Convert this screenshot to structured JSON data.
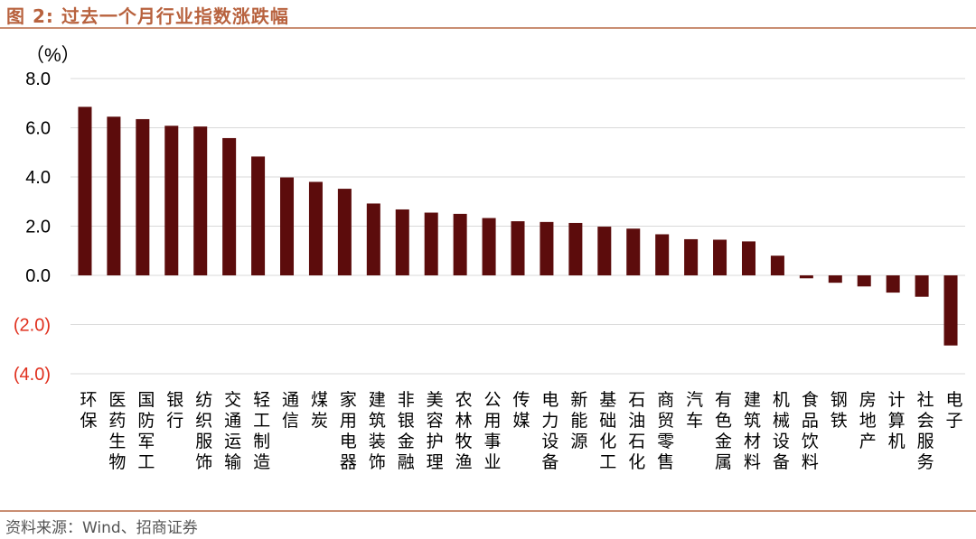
{
  "header": {
    "title": "图 2:  过去一个月行业指数涨跌幅"
  },
  "source": "资料来源：Wind、招商证券",
  "colors": {
    "bar": "#5c0c0c",
    "negative_label": "#e0301e",
    "title": "#b8623e",
    "rule": "#c98d72",
    "grid": "#d9d9d9"
  },
  "chart_data": {
    "type": "bar",
    "unit_label": "（%）",
    "ylim": [
      -4.0,
      8.0
    ],
    "yticks": [
      8.0,
      6.0,
      4.0,
      2.0,
      0.0,
      -2.0,
      -4.0
    ],
    "ytick_labels": [
      "8.0",
      "6.0",
      "4.0",
      "2.0",
      "0.0",
      "(2.0)",
      "(4.0)"
    ],
    "grid": true,
    "categories": [
      "环保",
      "医药生物",
      "国防军工",
      "银行",
      "纺织服饰",
      "交通运输",
      "轻工制造",
      "通信",
      "煤炭",
      "家用电器",
      "建筑装饰",
      "非银金融",
      "美容护理",
      "农林牧渔",
      "公用事业",
      "传媒",
      "电力设备",
      "新能源",
      "基础化工",
      "石油石化",
      "商贸零售",
      "汽车",
      "有色金属",
      "建筑材料",
      "机械设备",
      "食品饮料",
      "钢铁",
      "房地产",
      "计算机",
      "社会服务",
      "电子"
    ],
    "values": [
      6.85,
      6.45,
      6.35,
      6.08,
      6.05,
      5.58,
      4.83,
      3.98,
      3.8,
      3.52,
      2.92,
      2.68,
      2.55,
      2.5,
      2.33,
      2.2,
      2.17,
      2.13,
      1.98,
      1.9,
      1.67,
      1.47,
      1.45,
      1.38,
      0.8,
      -0.12,
      -0.3,
      -0.45,
      -0.7,
      -0.87,
      -2.85
    ]
  }
}
